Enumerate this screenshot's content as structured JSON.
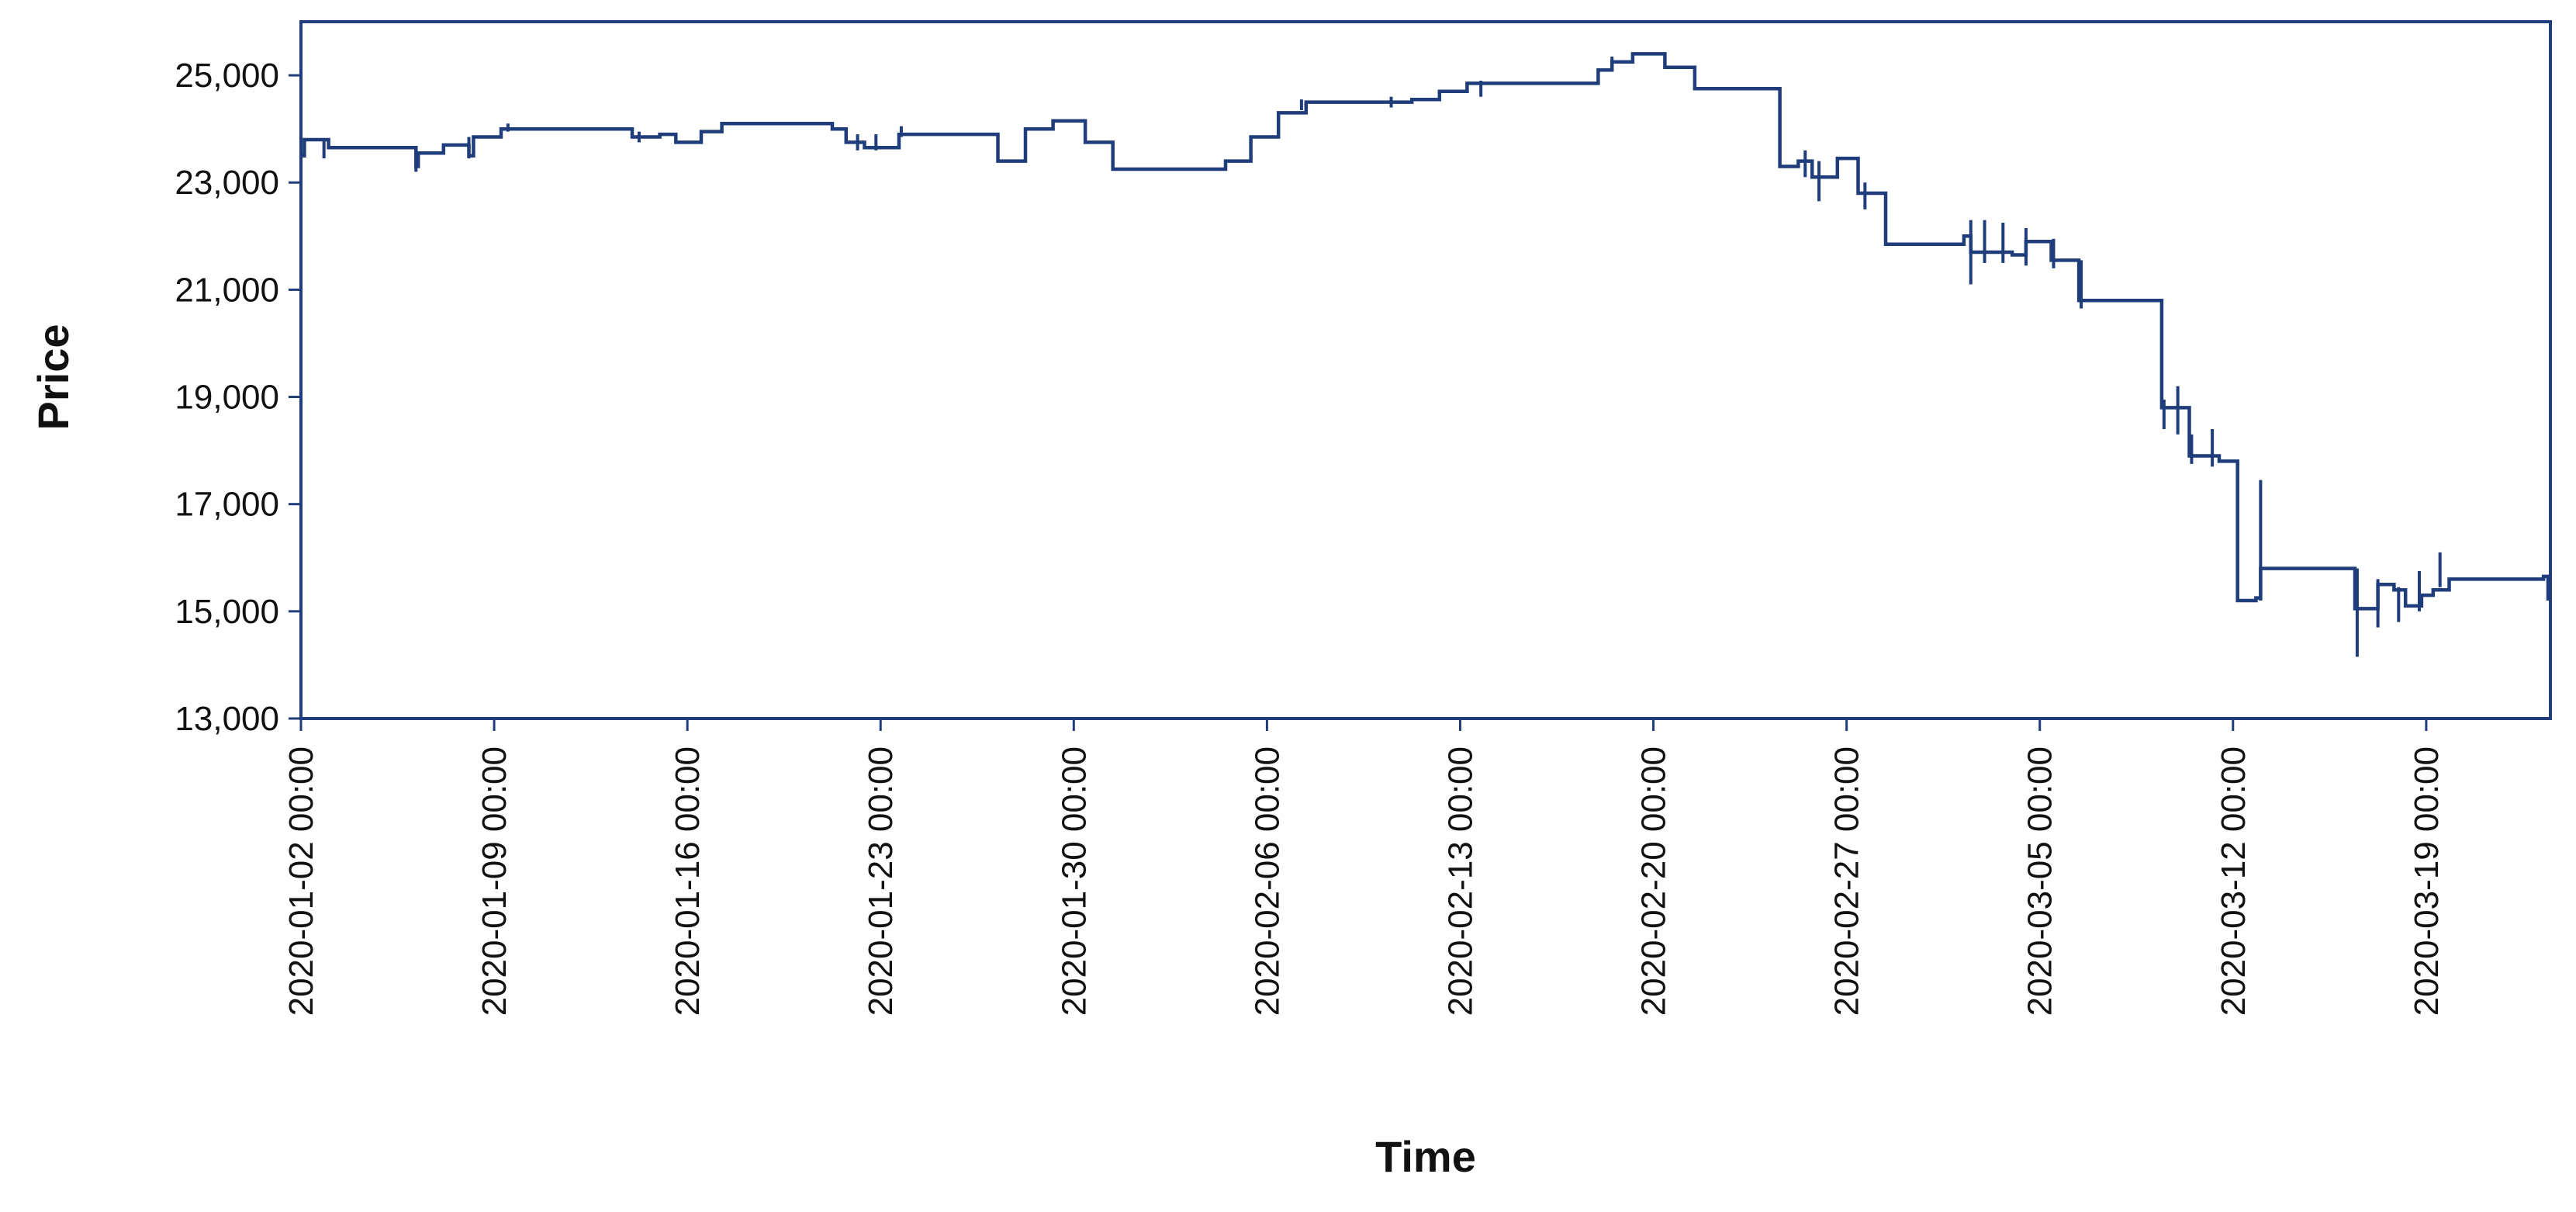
{
  "chart_data": {
    "type": "line",
    "title": "",
    "xlabel": "Time",
    "ylabel": "Price",
    "ylim": [
      13000,
      26000
    ],
    "xlim": [
      "2020-01-02 00:00",
      "2020-03-23 12:00"
    ],
    "y_ticks": [
      13000,
      15000,
      17000,
      19000,
      21000,
      23000,
      25000
    ],
    "y_tick_labels": [
      "13,000",
      "15,000",
      "17,000",
      "19,000",
      "21,000",
      "23,000",
      "25,000"
    ],
    "x_ticks": [
      "2020-01-02 00:00",
      "2020-01-09 00:00",
      "2020-01-16 00:00",
      "2020-01-23 00:00",
      "2020-01-30 00:00",
      "2020-02-06 00:00",
      "2020-02-13 00:00",
      "2020-02-20 00:00",
      "2020-02-27 00:00",
      "2020-03-05 00:00",
      "2020-03-12 00:00",
      "2020-03-19 00:00"
    ],
    "grid": false,
    "line_color": "#1f3d7a",
    "series": [
      {
        "points": [
          [
            "2020-01-02 00:00",
            23500
          ],
          [
            "2020-01-02 03:00",
            23800
          ],
          [
            "2020-01-02 20:00",
            23800
          ],
          [
            "2020-01-03 00:00",
            23650
          ],
          [
            "2020-01-06 02:00",
            23650
          ],
          [
            "2020-01-06 04:00",
            23300
          ],
          [
            "2020-01-06 06:00",
            23550
          ],
          [
            "2020-01-07 04:00",
            23700
          ],
          [
            "2020-01-08 00:00",
            23700
          ],
          [
            "2020-01-08 02:00",
            23500
          ],
          [
            "2020-01-08 06:00",
            23850
          ],
          [
            "2020-01-09 02:00",
            23850
          ],
          [
            "2020-01-09 06:00",
            24000
          ],
          [
            "2020-01-10 12:00",
            24000
          ],
          [
            "2020-01-13 00:00",
            24000
          ],
          [
            "2020-01-14 00:00",
            23850
          ],
          [
            "2020-01-15 00:00",
            23900
          ],
          [
            "2020-01-15 12:00",
            23900
          ],
          [
            "2020-01-15 14:00",
            23750
          ],
          [
            "2020-01-16 06:00",
            23750
          ],
          [
            "2020-01-16 12:00",
            23950
          ],
          [
            "2020-01-17 06:00",
            24100
          ],
          [
            "2020-01-20 00:00",
            24100
          ],
          [
            "2020-01-21 06:00",
            24000
          ],
          [
            "2020-01-21 18:00",
            23750
          ],
          [
            "2020-01-22 06:00",
            23750
          ],
          [
            "2020-01-22 10:00",
            23650
          ],
          [
            "2020-01-23 10:00",
            23650
          ],
          [
            "2020-01-23 16:00",
            23900
          ],
          [
            "2020-01-27 00:00",
            23900
          ],
          [
            "2020-01-27 06:00",
            23400
          ],
          [
            "2020-01-28 00:00",
            23400
          ],
          [
            "2020-01-28 06:00",
            24000
          ],
          [
            "2020-01-29 06:00",
            24150
          ],
          [
            "2020-01-30 06:00",
            24150
          ],
          [
            "2020-01-30 10:00",
            23750
          ],
          [
            "2020-01-31 06:00",
            23750
          ],
          [
            "2020-01-31 10:00",
            23250
          ],
          [
            "2020-02-04 06:00",
            23250
          ],
          [
            "2020-02-04 12:00",
            23400
          ],
          [
            "2020-02-05 06:00",
            23400
          ],
          [
            "2020-02-05 10:00",
            23850
          ],
          [
            "2020-02-06 06:00",
            23850
          ],
          [
            "2020-02-06 10:00",
            24300
          ],
          [
            "2020-02-07 06:00",
            24300
          ],
          [
            "2020-02-07 10:00",
            24500
          ],
          [
            "2020-02-10 06:00",
            24500
          ],
          [
            "2020-02-11 06:00",
            24550
          ],
          [
            "2020-02-12 06:00",
            24700
          ],
          [
            "2020-02-13 06:00",
            24850
          ],
          [
            "2020-02-14 06:00",
            24850
          ],
          [
            "2020-02-17 06:00",
            24850
          ],
          [
            "2020-02-18 00:00",
            25100
          ],
          [
            "2020-02-18 12:00",
            25250
          ],
          [
            "2020-02-19 06:00",
            25400
          ],
          [
            "2020-02-20 06:00",
            25400
          ],
          [
            "2020-02-20 10:00",
            25150
          ],
          [
            "2020-02-21 06:00",
            25150
          ],
          [
            "2020-02-21 12:00",
            24750
          ],
          [
            "2020-02-24 12:00",
            24750
          ],
          [
            "2020-02-24 14:00",
            23300
          ],
          [
            "2020-02-25 06:00",
            23400
          ],
          [
            "2020-02-25 18:00",
            23100
          ],
          [
            "2020-02-26 12:00",
            23100
          ],
          [
            "2020-02-26 16:00",
            23450
          ],
          [
            "2020-02-27 06:00",
            23450
          ],
          [
            "2020-02-27 10:00",
            22800
          ],
          [
            "2020-02-28 06:00",
            22800
          ],
          [
            "2020-02-28 10:00",
            21850
          ],
          [
            "2020-03-02 06:00",
            22000
          ],
          [
            "2020-03-02 12:00",
            21700
          ],
          [
            "2020-03-03 06:00",
            21700
          ],
          [
            "2020-03-04 00:00",
            21650
          ],
          [
            "2020-03-04 12:00",
            21900
          ],
          [
            "2020-03-05 06:00",
            21900
          ],
          [
            "2020-03-05 10:00",
            21550
          ],
          [
            "2020-03-06 06:00",
            21550
          ],
          [
            "2020-03-06 10:00",
            20800
          ],
          [
            "2020-03-09 06:00",
            20800
          ],
          [
            "2020-03-09 10:00",
            18800
          ],
          [
            "2020-03-10 06:00",
            18800
          ],
          [
            "2020-03-10 10:00",
            17900
          ],
          [
            "2020-03-11 06:00",
            17900
          ],
          [
            "2020-03-11 12:00",
            17800
          ],
          [
            "2020-03-12 00:00",
            17800
          ],
          [
            "2020-03-12 04:00",
            15200
          ],
          [
            "2020-03-12 20:00",
            15250
          ],
          [
            "2020-03-13 00:00",
            15800
          ],
          [
            "2020-03-16 06:00",
            15800
          ],
          [
            "2020-03-16 10:00",
            15050
          ],
          [
            "2020-03-17 00:00",
            15050
          ],
          [
            "2020-03-17 06:00",
            15500
          ],
          [
            "2020-03-17 20:00",
            15400
          ],
          [
            "2020-03-18 06:00",
            15100
          ],
          [
            "2020-03-18 20:00",
            15300
          ],
          [
            "2020-03-19 06:00",
            15400
          ],
          [
            "2020-03-19 20:00",
            15600
          ],
          [
            "2020-03-23 06:00",
            15650
          ],
          [
            "2020-03-23 10:00",
            15200
          ]
        ],
        "spikes": [
          [
            "2020-01-02 20:00",
            23450,
            23800
          ],
          [
            "2020-01-06 04:00",
            23200,
            23650
          ],
          [
            "2020-01-08 02:00",
            23450,
            23850
          ],
          [
            "2020-01-09 12:00",
            23950,
            24100
          ],
          [
            "2020-01-14 06:00",
            23750,
            23950
          ],
          [
            "2020-01-22 04:00",
            23600,
            23900
          ],
          [
            "2020-01-22 20:00",
            23600,
            23900
          ],
          [
            "2020-01-23 18:00",
            23850,
            24050
          ],
          [
            "2020-02-07 06:00",
            24350,
            24550
          ],
          [
            "2020-02-10 12:00",
            24400,
            24600
          ],
          [
            "2020-02-13 18:00",
            24600,
            24900
          ],
          [
            "2020-02-18 12:00",
            25100,
            25350
          ],
          [
            "2020-02-25 12:00",
            23100,
            23600
          ],
          [
            "2020-02-26 00:00",
            22650,
            23400
          ],
          [
            "2020-02-27 16:00",
            22500,
            23000
          ],
          [
            "2020-03-02 12:00",
            21100,
            22300
          ],
          [
            "2020-03-03 00:00",
            21500,
            22300
          ],
          [
            "2020-03-03 16:00",
            21500,
            22250
          ],
          [
            "2020-03-04 12:00",
            21450,
            22150
          ],
          [
            "2020-03-05 12:00",
            21400,
            21950
          ],
          [
            "2020-03-06 12:00",
            20650,
            21550
          ],
          [
            "2020-03-09 12:00",
            18400,
            18950
          ],
          [
            "2020-03-10 00:00",
            18300,
            19200
          ],
          [
            "2020-03-10 12:00",
            17750,
            18300
          ],
          [
            "2020-03-11 06:00",
            17700,
            18400
          ],
          [
            "2020-03-13 00:00",
            15200,
            17450
          ],
          [
            "2020-03-16 12:00",
            14150,
            15800
          ],
          [
            "2020-03-17 06:00",
            14700,
            15600
          ],
          [
            "2020-03-18 00:00",
            14800,
            15450
          ],
          [
            "2020-03-18 18:00",
            15000,
            15750
          ],
          [
            "2020-03-19 12:00",
            15450,
            16100
          ],
          [
            "2020-03-23 12:00",
            15100,
            15700
          ]
        ]
      }
    ]
  }
}
